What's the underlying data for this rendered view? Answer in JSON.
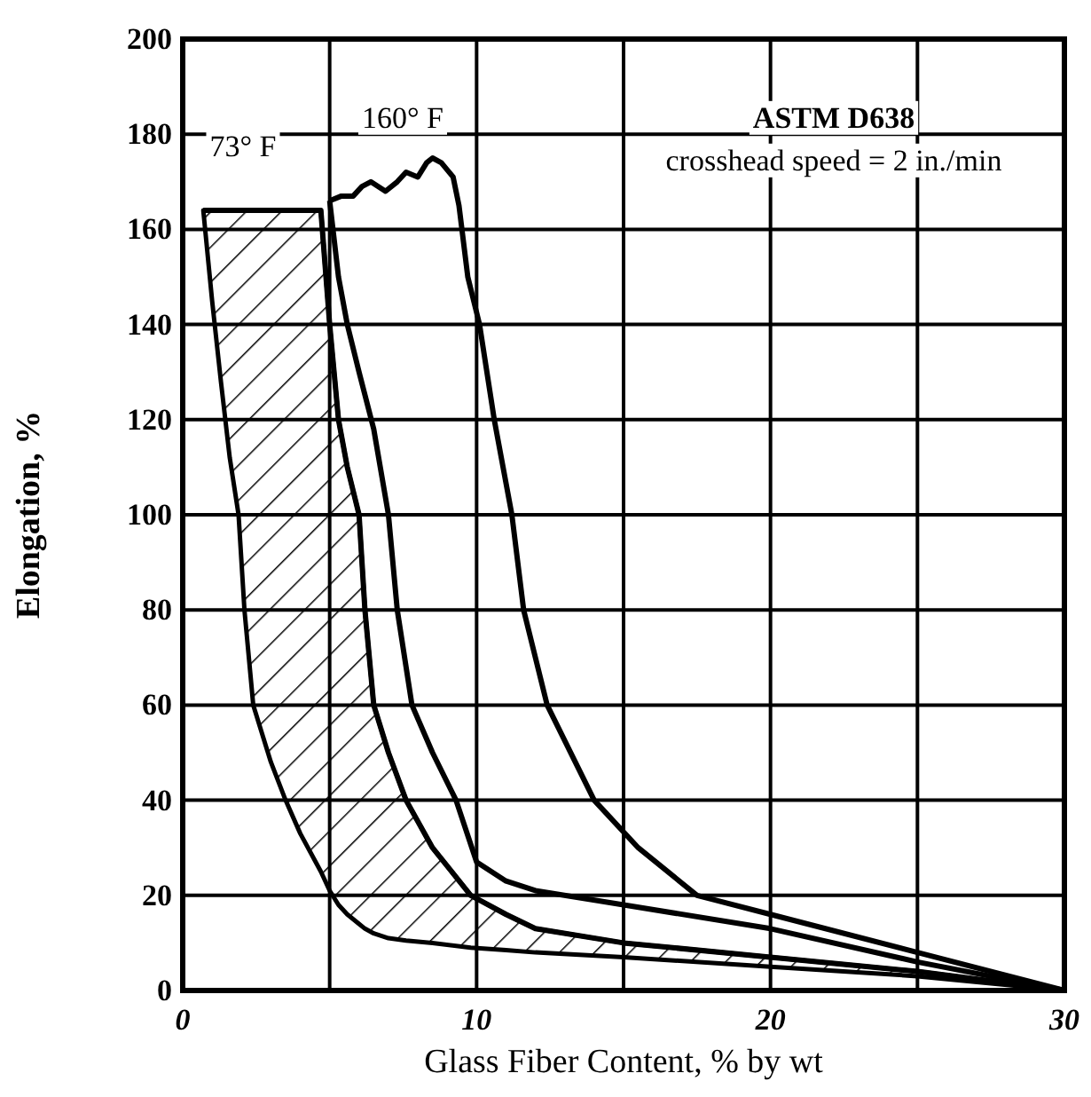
{
  "chart_data": {
    "type": "line",
    "xlabel": "Glass Fiber Content, % by wt",
    "ylabel": "Elongation, %",
    "xlim": [
      0,
      30
    ],
    "ylim": [
      0,
      200
    ],
    "xticks": [
      0,
      {
        "value": 5,
        "label": null
      },
      10,
      {
        "value": 15,
        "label": null
      },
      20,
      {
        "value": 25,
        "label": null
      },
      30
    ],
    "yticks": [
      0,
      20,
      40,
      60,
      80,
      100,
      120,
      140,
      160,
      180,
      200
    ],
    "grid": true,
    "marker": "none",
    "line_style": "solid",
    "series": [
      {
        "color": "#000000",
        "x": [
          0.7,
          1,
          1.3,
          1.6,
          1.9,
          2.1,
          2.4,
          3,
          3.5,
          4,
          4.7,
          5,
          5.3,
          5.6,
          6,
          6.2,
          6.5,
          7,
          7.6,
          8.5,
          9.8,
          11,
          12,
          15,
          20,
          25,
          30
        ],
        "values": [
          164,
          164,
          164,
          164,
          164,
          164,
          164,
          164,
          164,
          164,
          164,
          140,
          120,
          110,
          100,
          80,
          60,
          50,
          40,
          30,
          20,
          16,
          13,
          10,
          7,
          4,
          0
        ],
        "lower": [
          164,
          145,
          128,
          112,
          100,
          80,
          60,
          48,
          40,
          33,
          25,
          21,
          18,
          16,
          14,
          13,
          12,
          11,
          10.5,
          10,
          9,
          8.5,
          8,
          7,
          5,
          3,
          0
        ],
        "upper": [
          164,
          164,
          164,
          164,
          164,
          164,
          164,
          164,
          164,
          164,
          164,
          140,
          120,
          110,
          100,
          80,
          60,
          50,
          40,
          30,
          20,
          16,
          13,
          10,
          7,
          4,
          0
        ]
      },
      {
        "color": "#000000",
        "x": [
          5,
          5.3,
          5.6,
          6,
          6.5,
          7,
          7.3,
          7.8,
          8.5,
          9.3,
          10,
          11,
          12,
          15,
          20,
          25,
          30
        ],
        "values": [
          166,
          150,
          140,
          130,
          118,
          100,
          80,
          60,
          50,
          40,
          27,
          23,
          21,
          18,
          13,
          6,
          0
        ]
      },
      {
        "color": "#000000",
        "x": [
          5,
          5.4,
          5.8,
          6.1,
          6.4,
          6.9,
          7.3,
          7.6,
          8,
          8.3,
          8.5,
          8.8,
          9.2,
          9.4,
          9.7,
          10.1,
          10.6,
          11.2,
          11.6,
          12.4,
          14,
          15.5,
          17.5,
          20,
          25,
          30
        ],
        "values": [
          166,
          167,
          167,
          169,
          170,
          168,
          170,
          172,
          171,
          174,
          175,
          174,
          171,
          165,
          150,
          140,
          120,
          100,
          80,
          60,
          40,
          30,
          20,
          16,
          8,
          0
        ]
      }
    ],
    "annotations": [
      "73° F",
      "160° F",
      "ASTM D638",
      "crosshead speed = 2 in./min"
    ]
  }
}
